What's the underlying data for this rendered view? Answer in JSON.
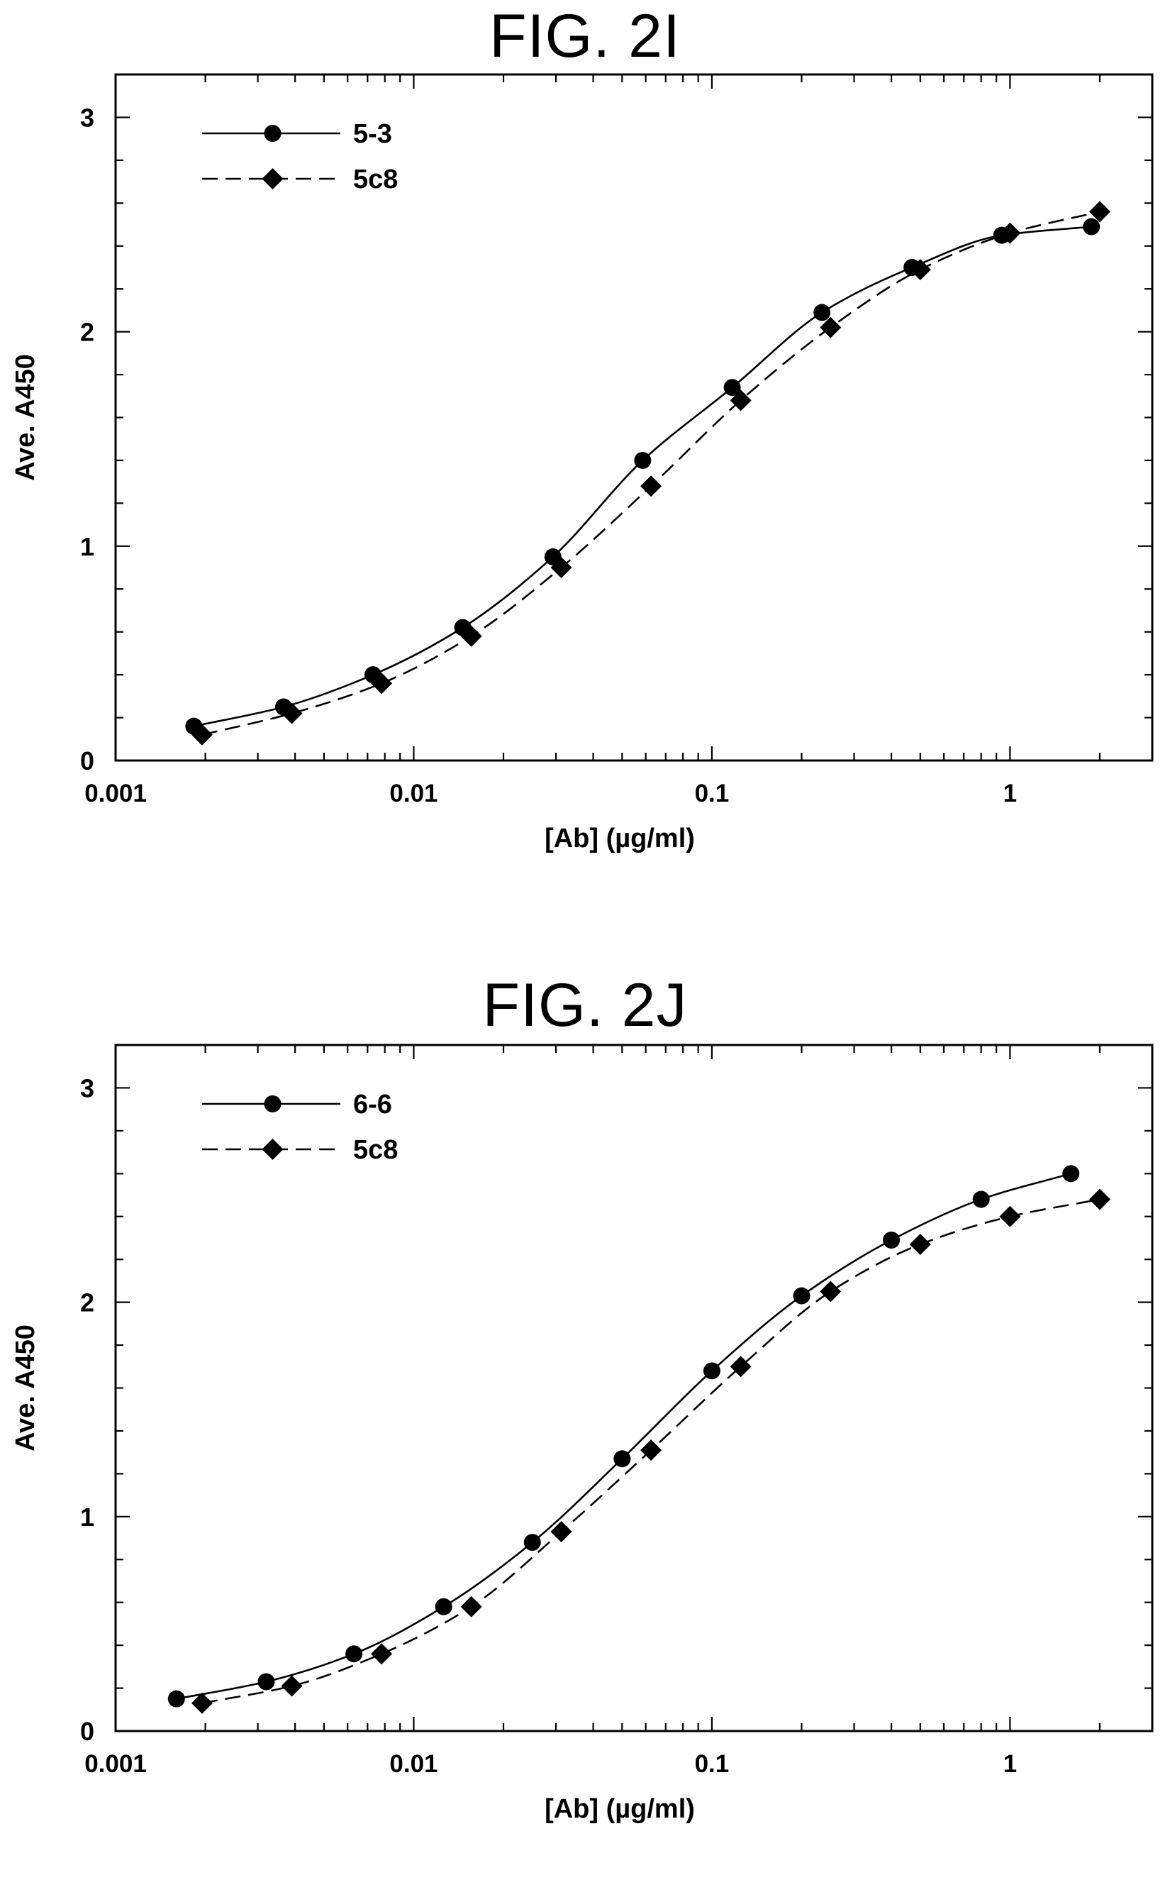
{
  "chart_data": [
    {
      "type": "line",
      "title": "FIG. 2I",
      "xlabel": "[Ab]  (µg/ml)",
      "ylabel": "Ave. A450",
      "x_scale": "log",
      "xlim": [
        0.001,
        3.0
      ],
      "ylim": [
        0,
        3.2
      ],
      "xticks": [
        0.001,
        0.01,
        0.1,
        1
      ],
      "xtick_labels": [
        "0.001",
        "0.01",
        "0.1",
        "1"
      ],
      "yticks": [
        0,
        1,
        2,
        3
      ],
      "ytick_labels": [
        "0",
        "1",
        "2",
        "3"
      ],
      "grid": false,
      "legend_position": "top-left",
      "series": [
        {
          "name": "5-3",
          "marker": "circle",
          "line": "solid",
          "x": [
            0.00183,
            0.00366,
            0.0073,
            0.0146,
            0.0293,
            0.0586,
            0.117,
            0.234,
            0.469,
            0.938,
            1.875
          ],
          "y": [
            0.16,
            0.25,
            0.4,
            0.62,
            0.95,
            1.4,
            1.74,
            2.09,
            2.3,
            2.45,
            2.49
          ]
        },
        {
          "name": "5c8",
          "marker": "diamond",
          "line": "dashed",
          "x": [
            0.00195,
            0.0039,
            0.0078,
            0.0156,
            0.03125,
            0.0625,
            0.125,
            0.25,
            0.5,
            1.0,
            2.0
          ],
          "y": [
            0.12,
            0.22,
            0.36,
            0.58,
            0.9,
            1.28,
            1.68,
            2.02,
            2.29,
            2.46,
            2.56
          ]
        }
      ]
    },
    {
      "type": "line",
      "title": "FIG. 2J",
      "xlabel": "[Ab]  (µg/ml)",
      "ylabel": "Ave. A450",
      "x_scale": "log",
      "xlim": [
        0.001,
        3.0
      ],
      "ylim": [
        0,
        3.2
      ],
      "xticks": [
        0.001,
        0.01,
        0.1,
        1
      ],
      "xtick_labels": [
        "0.001",
        "0.01",
        "0.1",
        "1"
      ],
      "yticks": [
        0,
        1,
        2,
        3
      ],
      "ytick_labels": [
        "0",
        "1",
        "2",
        "3"
      ],
      "grid": false,
      "legend_position": "top-left",
      "series": [
        {
          "name": "6-6",
          "marker": "circle",
          "line": "solid",
          "x": [
            0.0016,
            0.0032,
            0.0063,
            0.0126,
            0.025,
            0.05,
            0.1,
            0.2,
            0.4,
            0.8,
            1.6
          ],
          "y": [
            0.15,
            0.23,
            0.36,
            0.58,
            0.88,
            1.27,
            1.68,
            2.03,
            2.29,
            2.48,
            2.6
          ]
        },
        {
          "name": "5c8",
          "marker": "diamond",
          "line": "dashed",
          "x": [
            0.00195,
            0.0039,
            0.0078,
            0.0156,
            0.03125,
            0.0625,
            0.125,
            0.25,
            0.5,
            1.0,
            2.0
          ],
          "y": [
            0.13,
            0.21,
            0.36,
            0.58,
            0.93,
            1.31,
            1.7,
            2.05,
            2.27,
            2.4,
            2.48
          ]
        }
      ]
    }
  ]
}
